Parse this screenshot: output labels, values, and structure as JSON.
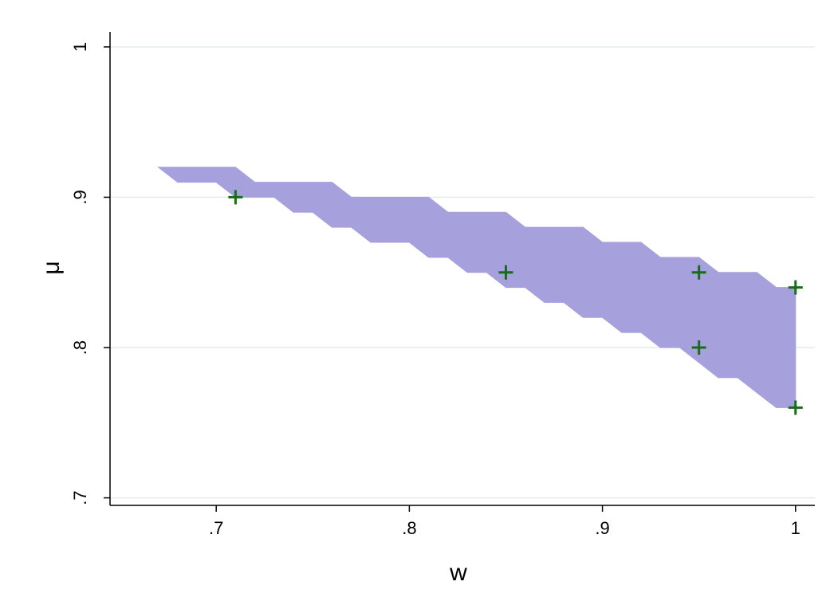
{
  "chart_data": {
    "type": "area",
    "xlabel": "w",
    "ylabel": "μ",
    "xlim": [
      0.645,
      1.01
    ],
    "ylim": [
      0.695,
      1.01
    ],
    "x_ticks": [
      0.7,
      0.8,
      0.9,
      1.0
    ],
    "x_tick_labels": [
      ".7",
      ".8",
      ".9",
      "1"
    ],
    "y_ticks": [
      0.7,
      0.8,
      0.9,
      1.0
    ],
    "y_tick_labels": [
      ".7",
      ".8",
      ".9",
      "1"
    ],
    "grid": "horizontal",
    "legend": "none",
    "band": {
      "name": "",
      "color": "#a6a0dc",
      "upper": [
        [
          0.67,
          0.92
        ],
        [
          0.71,
          0.92
        ],
        [
          0.72,
          0.91
        ],
        [
          0.76,
          0.91
        ],
        [
          0.77,
          0.9
        ],
        [
          0.81,
          0.9
        ],
        [
          0.82,
          0.89
        ],
        [
          0.85,
          0.89
        ],
        [
          0.86,
          0.88
        ],
        [
          0.89,
          0.88
        ],
        [
          0.9,
          0.87
        ],
        [
          0.92,
          0.87
        ],
        [
          0.93,
          0.86
        ],
        [
          0.95,
          0.86
        ],
        [
          0.96,
          0.85
        ],
        [
          0.98,
          0.85
        ],
        [
          0.99,
          0.84
        ],
        [
          1.0,
          0.84
        ]
      ],
      "lower": [
        [
          0.68,
          0.91
        ],
        [
          0.7,
          0.91
        ],
        [
          0.71,
          0.9
        ],
        [
          0.73,
          0.9
        ],
        [
          0.74,
          0.89
        ],
        [
          0.75,
          0.89
        ],
        [
          0.76,
          0.88
        ],
        [
          0.77,
          0.88
        ],
        [
          0.78,
          0.87
        ],
        [
          0.8,
          0.87
        ],
        [
          0.81,
          0.86
        ],
        [
          0.82,
          0.86
        ],
        [
          0.83,
          0.85
        ],
        [
          0.84,
          0.85
        ],
        [
          0.85,
          0.84
        ],
        [
          0.86,
          0.84
        ],
        [
          0.87,
          0.83
        ],
        [
          0.88,
          0.83
        ],
        [
          0.89,
          0.82
        ],
        [
          0.9,
          0.82
        ],
        [
          0.91,
          0.81
        ],
        [
          0.92,
          0.81
        ],
        [
          0.93,
          0.8
        ],
        [
          0.94,
          0.8
        ],
        [
          0.95,
          0.79
        ],
        [
          0.96,
          0.78
        ],
        [
          0.97,
          0.78
        ],
        [
          0.98,
          0.77
        ],
        [
          0.99,
          0.76
        ],
        [
          1.0,
          0.76
        ]
      ]
    },
    "points": {
      "name": "",
      "color": "#1a6b1a",
      "marker": "plus",
      "x": [
        0.71,
        0.85,
        0.95,
        0.95,
        1.0,
        1.0
      ],
      "y": [
        0.9,
        0.85,
        0.85,
        0.8,
        0.84,
        0.76
      ]
    }
  }
}
